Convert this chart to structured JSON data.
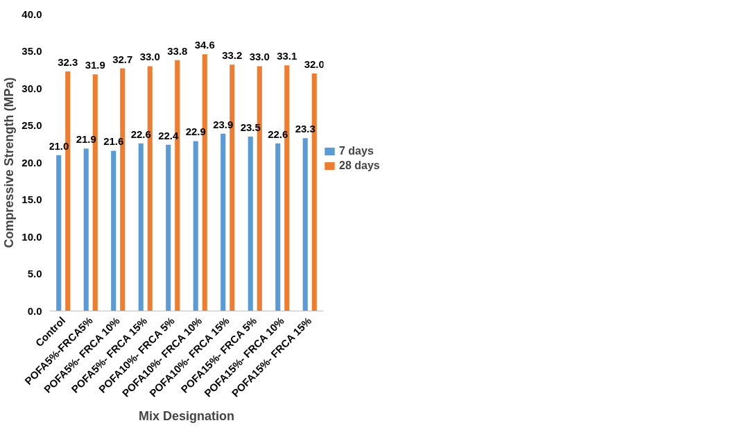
{
  "chart_data": {
    "type": "bar",
    "xlabel": "Mix Designation",
    "ylabel": "Compressive Strength (MPa)",
    "categories": [
      "Control",
      "POFA5%-FRCA5%",
      "POFA5%- FRCA 10%",
      "POFA5%- FRCA 15%",
      "POFA10%- FRCA 5%",
      "POFA10%- FRCA 10%",
      "POFA10%- FRCA 15%",
      "POFA15%- FRCA 5%",
      "POFA15%- FRCA 10%",
      "POFA15%- FRCA 15%"
    ],
    "series": [
      {
        "name": "7 days",
        "color": "#5b9bd5",
        "values": [
          21.0,
          21.9,
          21.6,
          22.6,
          22.4,
          22.9,
          23.9,
          23.5,
          22.6,
          23.3
        ],
        "value_labels": [
          "21.0",
          "21.9",
          "21.6",
          "22.6",
          "22.4",
          "22.9",
          "23.9",
          "23.5",
          "22.6",
          "23.3"
        ]
      },
      {
        "name": "28 days",
        "color": "#ed7d31",
        "values": [
          32.3,
          31.9,
          32.7,
          33.0,
          33.8,
          34.6,
          33.2,
          33.0,
          33.1,
          32.0
        ],
        "value_labels": [
          "32.3",
          "31.9",
          "32.7",
          "33.0",
          "33.8",
          "34.6",
          "33.2",
          "33.0",
          "33.1",
          "32.0"
        ]
      }
    ],
    "ylim": [
      0,
      40
    ],
    "yticks": [
      {
        "value": 0,
        "label": "0.0"
      },
      {
        "value": 5,
        "label": "5.0"
      },
      {
        "value": 10,
        "label": "10.0"
      },
      {
        "value": 15,
        "label": "15.0"
      },
      {
        "value": 20,
        "label": "20.0"
      },
      {
        "value": 25,
        "label": "25.0"
      },
      {
        "value": 30,
        "label": "30.0"
      },
      {
        "value": 35,
        "label": "35.0"
      },
      {
        "value": 40,
        "label": "40.0"
      }
    ],
    "grid": false,
    "legend": "right"
  }
}
